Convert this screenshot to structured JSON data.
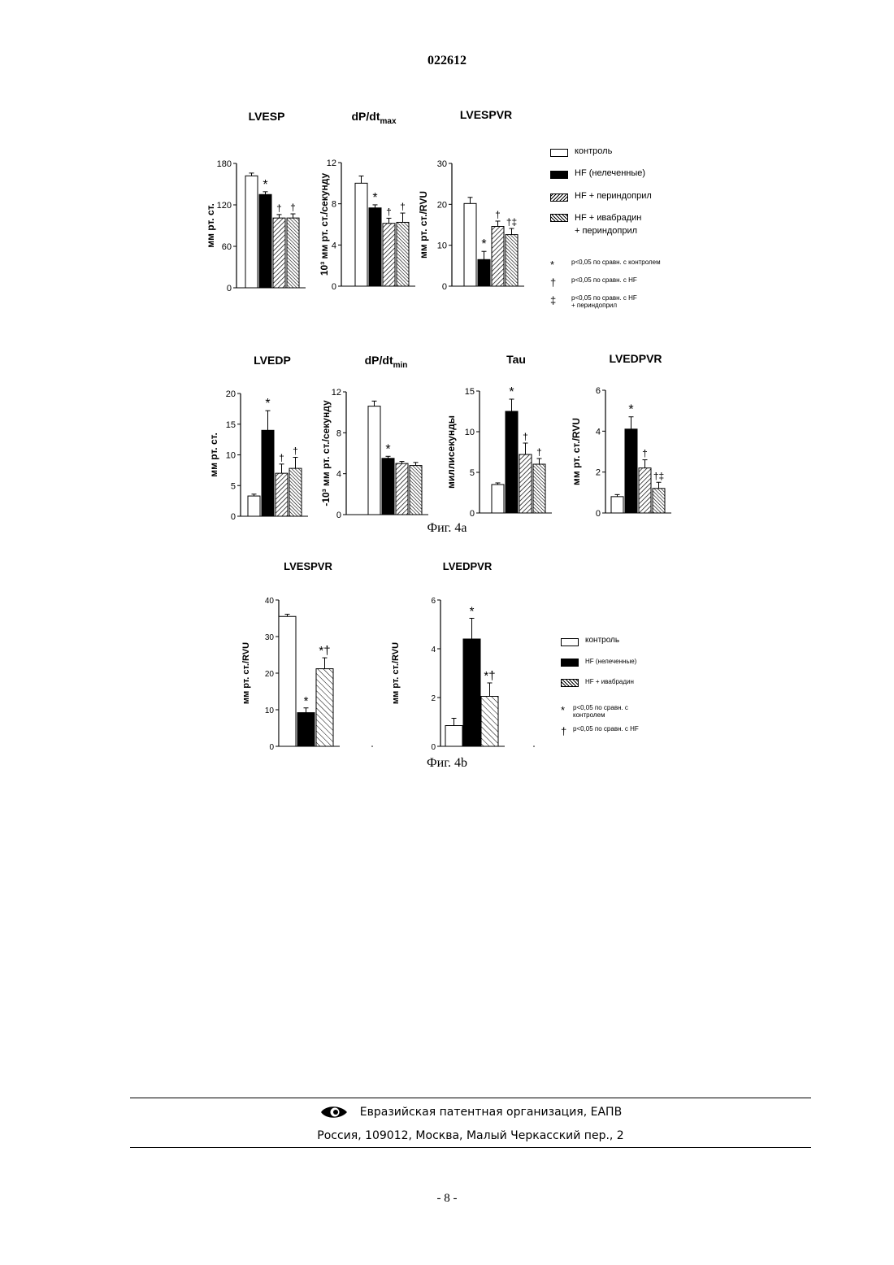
{
  "doc_number": "022612",
  "fig4a_caption": "Фиг. 4a",
  "fig4b_caption": "Фиг. 4b",
  "legend_4a": {
    "items": [
      {
        "style": "control",
        "label": "контроль"
      },
      {
        "style": "hf",
        "label": "HF (нелеченные)"
      },
      {
        "style": "perin",
        "label": "HF + периндоприл"
      },
      {
        "style": "ivaper",
        "label": "HF + ивабрадин\n+ периндоприл"
      }
    ],
    "notes": [
      {
        "symbol": "*",
        "text": "p<0,05 по сравн. с контролем"
      },
      {
        "symbol": "†",
        "text": "p<0,05 по сравн. с HF"
      },
      {
        "symbol": "‡",
        "text": "p<0,05 по сравн. с HF\n+ периндоприл"
      }
    ]
  },
  "legend_4b": {
    "items": [
      {
        "style": "control",
        "label": "контроль"
      },
      {
        "style": "hf",
        "label": "HF (нелеченные)"
      },
      {
        "style": "iva",
        "label": "HF + ивабрадин"
      }
    ],
    "notes": [
      {
        "symbol": "*",
        "text": "p<0,05 по сравн. с\nконтролем"
      },
      {
        "symbol": "†",
        "text": "p<0,05 по сравн. с HF"
      }
    ]
  },
  "footer": {
    "org": "Евразийская патентная организация, ЕАПВ",
    "address": "Россия, 109012, Москва, Малый Черкасский пер., 2"
  },
  "page_number": "- 8 -",
  "chart_data": [
    {
      "id": "lvesp",
      "type": "bar",
      "title": "LVESP",
      "title_sub": "",
      "ylabel": "мм рт. ст.",
      "ylim": [
        0,
        180
      ],
      "yticks": [
        0,
        60,
        120,
        180
      ],
      "groups": [
        "control",
        "hf",
        "perin",
        "ivaper"
      ],
      "values": [
        162,
        135,
        101,
        101
      ],
      "errors": [
        4,
        4,
        5,
        6
      ],
      "markers": [
        "",
        "*",
        "†",
        "†"
      ]
    },
    {
      "id": "dpdtmax",
      "type": "bar",
      "title": "dP/dt",
      "title_sub": "max",
      "ylabel": "10³ мм рт. ст./секунду",
      "ylim": [
        0,
        12
      ],
      "yticks": [
        0,
        4,
        8,
        12
      ],
      "groups": [
        "control",
        "hf",
        "perin",
        "ivaper"
      ],
      "values": [
        10.0,
        7.6,
        6.1,
        6.2
      ],
      "errors": [
        0.7,
        0.3,
        0.5,
        0.9
      ],
      "markers": [
        "",
        "*",
        "†",
        "†"
      ]
    },
    {
      "id": "lvespvr4a",
      "type": "bar",
      "title": "LVESPVR",
      "title_sub": "",
      "ylabel": "мм рт. ст./RVU",
      "ylim": [
        0,
        30
      ],
      "yticks": [
        0,
        10,
        20,
        30
      ],
      "groups": [
        "control",
        "hf",
        "perin",
        "ivaper"
      ],
      "values": [
        20.2,
        6.5,
        14.6,
        12.6
      ],
      "errors": [
        1.5,
        2.0,
        1.3,
        1.5
      ],
      "markers": [
        "",
        "*",
        "†",
        "†‡"
      ]
    },
    {
      "id": "lvedp",
      "type": "bar",
      "title": "LVEDP",
      "title_sub": "",
      "ylabel": "мм рт. ст.",
      "ylim": [
        0,
        20
      ],
      "yticks": [
        0,
        5,
        10,
        15,
        20
      ],
      "groups": [
        "control",
        "hf",
        "perin",
        "ivaper"
      ],
      "values": [
        3.3,
        14.0,
        7.0,
        7.8
      ],
      "errors": [
        0.3,
        3.2,
        1.5,
        1.8
      ],
      "markers": [
        "",
        "*",
        "†",
        "†"
      ]
    },
    {
      "id": "dpdtmin",
      "type": "bar",
      "title": "dP/dt",
      "title_sub": "min",
      "ylabel": "-10³ мм рт. ст./секунду",
      "ylim": [
        0,
        12
      ],
      "yticks": [
        0,
        4,
        8,
        12
      ],
      "groups": [
        "control",
        "hf",
        "perin",
        "ivaper"
      ],
      "values": [
        10.6,
        5.5,
        5.0,
        4.8
      ],
      "errors": [
        0.5,
        0.2,
        0.2,
        0.3
      ],
      "markers": [
        "",
        "*",
        "",
        ""
      ]
    },
    {
      "id": "tau",
      "type": "bar",
      "title": "Tau",
      "title_sub": "",
      "ylabel": "миллисекунды",
      "ylim": [
        0,
        15
      ],
      "yticks": [
        0,
        5,
        10,
        15
      ],
      "groups": [
        "control",
        "hf",
        "perin",
        "ivaper"
      ],
      "values": [
        3.5,
        12.5,
        7.2,
        6.0
      ],
      "errors": [
        0.2,
        1.5,
        1.4,
        0.7
      ],
      "markers": [
        "",
        "*",
        "†",
        "†"
      ]
    },
    {
      "id": "lvedpvr4a",
      "type": "bar",
      "title": "LVEDPVR",
      "title_sub": "",
      "ylabel": "мм рт. ст./RVU",
      "ylim": [
        0,
        6
      ],
      "yticks": [
        0,
        2,
        4,
        6
      ],
      "groups": [
        "control",
        "hf",
        "perin",
        "ivaper"
      ],
      "values": [
        0.8,
        4.1,
        2.2,
        1.2
      ],
      "errors": [
        0.1,
        0.6,
        0.4,
        0.3
      ],
      "markers": [
        "",
        "*",
        "†",
        "†‡"
      ]
    },
    {
      "id": "lvespvr4b",
      "type": "bar",
      "title": "LVESPVR",
      "title_sub": "",
      "ylabel": "мм рт. ст./RVU",
      "ylim": [
        0,
        40
      ],
      "yticks": [
        0,
        10,
        20,
        30,
        40
      ],
      "groups": [
        "control",
        "hf",
        "iva"
      ],
      "values": [
        35.5,
        9.2,
        21.2
      ],
      "errors": [
        0.6,
        1.3,
        3.0
      ],
      "markers": [
        "",
        "*",
        "*†"
      ]
    },
    {
      "id": "lvedpvr4b",
      "type": "bar",
      "title": "LVEDPVR",
      "title_sub": "",
      "ylabel": "мм рт. ст./RVU",
      "ylim": [
        0,
        6
      ],
      "yticks": [
        0,
        2,
        4,
        6
      ],
      "groups": [
        "control",
        "hf",
        "iva"
      ],
      "values": [
        0.85,
        4.4,
        2.05
      ],
      "errors": [
        0.3,
        0.85,
        0.55
      ],
      "markers": [
        "",
        "*",
        "*†"
      ]
    }
  ]
}
